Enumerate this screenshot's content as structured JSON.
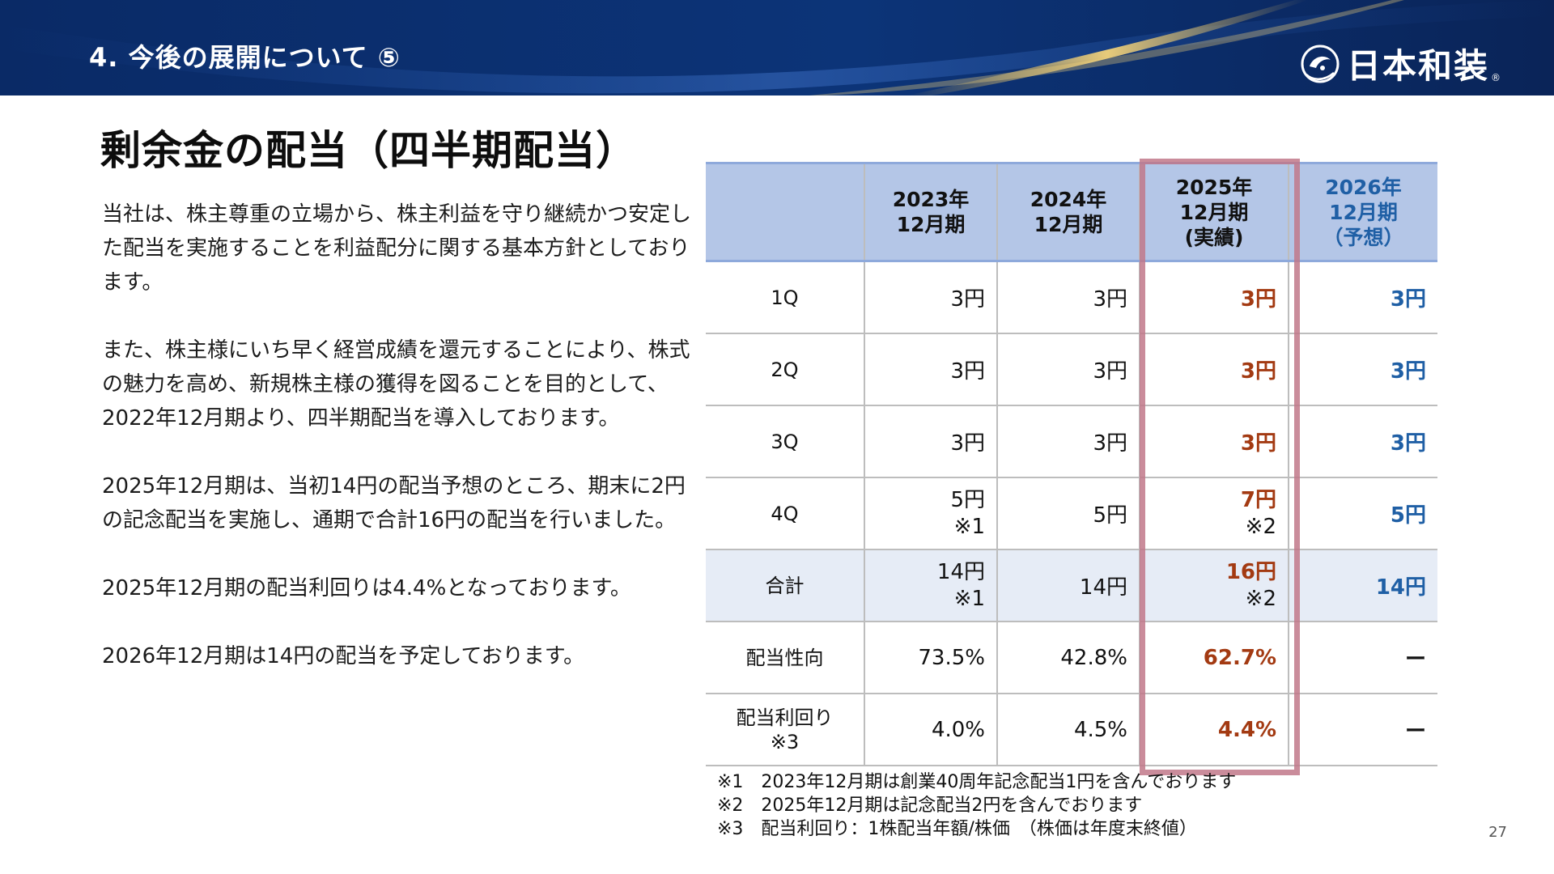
{
  "header": {
    "title": "4. 今後の展開について ⑤",
    "logo_text": "日本和装",
    "logo_reg": "®"
  },
  "main": {
    "title": "剰余金の配当（四半期配当）",
    "paragraphs": [
      "当社は、株主尊重の立場から、株主利益を守り継続かつ安定した配当を実施することを利益配分に関する基本方針としております。",
      "また、株主様にいち早く経営成績を還元することにより、株式の魅力を高め、新規株主様の獲得を図ることを目的として、2022年12月期より、四半期配当を導入しております。",
      "2025年12月期は、当初14円の配当予想のところ、期末に2円の記念配当を実施し、通期で合計16円の配当を行いました。",
      "2025年12月期の配当利回りは4.4%となっております。",
      "2026年12月期は14円の配当を予定しております。"
    ]
  },
  "table": {
    "headers": [
      [
        "2023年",
        "12月期"
      ],
      [
        "2024年",
        "12月期"
      ],
      [
        "2025年",
        "12月期",
        "(実績)"
      ],
      [
        "2026年",
        "12月期",
        "（予想）"
      ]
    ],
    "rows": [
      {
        "label": [
          "1Q"
        ],
        "y2023": [
          "3円"
        ],
        "y2024": [
          "3円"
        ],
        "y2025": [
          "3円"
        ],
        "y2026": [
          "3円"
        ]
      },
      {
        "label": [
          "2Q"
        ],
        "y2023": [
          "3円"
        ],
        "y2024": [
          "3円"
        ],
        "y2025": [
          "3円"
        ],
        "y2026": [
          "3円"
        ]
      },
      {
        "label": [
          "3Q"
        ],
        "y2023": [
          "3円"
        ],
        "y2024": [
          "3円"
        ],
        "y2025": [
          "3円"
        ],
        "y2026": [
          "3円"
        ]
      },
      {
        "label": [
          "4Q"
        ],
        "y2023": [
          "5円",
          "※1"
        ],
        "y2024": [
          "5円"
        ],
        "y2025": [
          "7円",
          "※2"
        ],
        "y2026": [
          "5円"
        ]
      },
      {
        "label": [
          "合計"
        ],
        "y2023": [
          "14円",
          "※1"
        ],
        "y2024": [
          "14円"
        ],
        "y2025": [
          "16円",
          "※2"
        ],
        "y2026": [
          "14円"
        ]
      },
      {
        "label": [
          "配当性向"
        ],
        "y2023": [
          "73.5%"
        ],
        "y2024": [
          "42.8%"
        ],
        "y2025": [
          "62.7%"
        ],
        "y2026": [
          "ー"
        ]
      },
      {
        "label": [
          "配当利回り",
          "※3"
        ],
        "y2023": [
          "4.0%"
        ],
        "y2024": [
          "4.5%"
        ],
        "y2025": [
          "4.4%"
        ],
        "y2026": [
          "ー"
        ]
      }
    ]
  },
  "notes": [
    "※1　2023年12月期は創業40周年記念配当1円を含んでおります",
    "※2　2025年12月期は記念配当2円を含んでおります",
    "※3　配当利回り：1株配当年額/株価　（株価は年度末終値）"
  ],
  "page_number": "27",
  "colors": {
    "header_bg": "#0c3478",
    "table_header_bg": "#b4c6e7",
    "actual_value": "#a33a12",
    "forecast_value": "#1f5fa5",
    "highlight_border": "#c1788a",
    "total_row_bg": "#e6ecf6"
  }
}
